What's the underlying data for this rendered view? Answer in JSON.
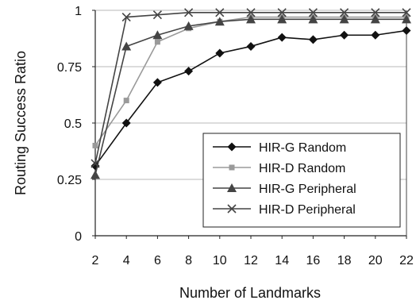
{
  "chart_data": {
    "type": "line",
    "xlabel": "Number of Landmarks",
    "ylabel": "Routing Success Ratio",
    "x": [
      2,
      4,
      6,
      8,
      10,
      12,
      14,
      16,
      18,
      20,
      22
    ],
    "xlim": [
      2,
      22
    ],
    "ylim": [
      0,
      1
    ],
    "x_ticks": [
      "2",
      "4",
      "6",
      "8",
      "10",
      "12",
      "14",
      "16",
      "18",
      "20",
      "22"
    ],
    "y_ticks": [
      "0",
      "0.25",
      "0.5",
      "0.75",
      "1"
    ],
    "grid": "horizontal",
    "legend_position": "bottom-right",
    "series": [
      {
        "name": "HIR-G Random",
        "marker": "diamond",
        "color": "#111111",
        "values": [
          0.31,
          0.5,
          0.68,
          0.73,
          0.81,
          0.84,
          0.88,
          0.87,
          0.89,
          0.89,
          0.91
        ]
      },
      {
        "name": "HIR-D Random",
        "marker": "square",
        "color": "#9a9a9a",
        "values": [
          0.4,
          0.6,
          0.86,
          0.92,
          0.95,
          0.97,
          0.97,
          0.97,
          0.97,
          0.97,
          0.97
        ]
      },
      {
        "name": "HIR-G Peripheral",
        "marker": "triangle",
        "color": "#444444",
        "values": [
          0.27,
          0.84,
          0.89,
          0.93,
          0.95,
          0.96,
          0.96,
          0.96,
          0.96,
          0.96,
          0.96
        ]
      },
      {
        "name": "HIR-D Peripheral",
        "marker": "x",
        "color": "#444444",
        "values": [
          0.32,
          0.97,
          0.98,
          0.99,
          0.99,
          0.99,
          0.99,
          0.99,
          0.99,
          0.99,
          0.99
        ]
      }
    ]
  }
}
